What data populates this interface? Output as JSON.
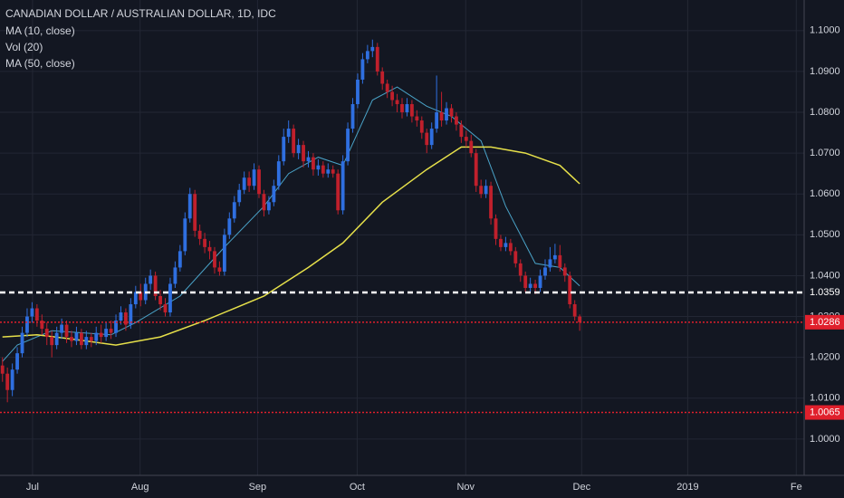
{
  "chart_data": {
    "type": "candlestick",
    "title": "CANADIAN DOLLAR / AUSTRALIAN DOLLAR, 1D, IDC",
    "indicators": [
      "MA (10, close)",
      "Vol (20)",
      "MA (50, close)"
    ],
    "up_color": "#2f6fe0",
    "down_color": "#c0202c",
    "grid": true,
    "xlim": [
      -0.5,
      162.5
    ],
    "ylim": [
      0.9911,
      1.1075
    ],
    "xticks": [
      {
        "value": 6.1,
        "label": "Jul"
      },
      {
        "value": 27.9,
        "label": "Aug"
      },
      {
        "value": 51.7,
        "label": "Sep"
      },
      {
        "value": 71.9,
        "label": "Oct"
      },
      {
        "value": 93.9,
        "label": "Nov"
      },
      {
        "value": 117.4,
        "label": "Dec"
      },
      {
        "value": 138.9,
        "label": "2019"
      },
      {
        "value": 160.9,
        "label": "Fe"
      }
    ],
    "yticks": [
      {
        "value": 1.0,
        "label": "1.0000"
      },
      {
        "value": 1.01,
        "label": "1.0100"
      },
      {
        "value": 1.02,
        "label": "1.0200"
      },
      {
        "value": 1.03,
        "label": "1.0300"
      },
      {
        "value": 1.04,
        "label": "1.0400"
      },
      {
        "value": 1.05,
        "label": "1.0500"
      },
      {
        "value": 1.06,
        "label": "1.0600"
      },
      {
        "value": 1.07,
        "label": "1.0700"
      },
      {
        "value": 1.08,
        "label": "1.0800"
      },
      {
        "value": 1.09,
        "label": "1.0900"
      },
      {
        "value": 1.1,
        "label": "1.1000"
      }
    ],
    "open": [
      1.018,
      1.016,
      1.012,
      1.017,
      1.021,
      1.026,
      1.03,
      1.032,
      1.029,
      1.027,
      1.025,
      1.023,
      1.026,
      1.028,
      1.025,
      1.024,
      1.026,
      1.023,
      1.025,
      1.024,
      1.026,
      1.025,
      1.027,
      1.026,
      1.029,
      1.031,
      1.028,
      1.033,
      1.036,
      1.034,
      1.038,
      1.04,
      1.035,
      1.033,
      1.031,
      1.038,
      1.042,
      1.046,
      1.054,
      1.06,
      1.051,
      1.049,
      1.047,
      1.046,
      1.042,
      1.041,
      1.05,
      1.054,
      1.058,
      1.061,
      1.064,
      1.062,
      1.066,
      1.06,
      1.056,
      1.058,
      1.062,
      1.068,
      1.074,
      1.076,
      1.07,
      1.072,
      1.068,
      1.069,
      1.066,
      1.067,
      1.065,
      1.066,
      1.065,
      1.056,
      1.068,
      1.076,
      1.082,
      1.088,
      1.093,
      1.095,
      1.096,
      1.09,
      1.087,
      1.085,
      1.083,
      1.082,
      1.08,
      1.082,
      1.079,
      1.078,
      1.075,
      1.072,
      1.076,
      1.08,
      1.078,
      1.081,
      1.079,
      1.077,
      1.074,
      1.073,
      1.07,
      1.062,
      1.06,
      1.062,
      1.054,
      1.049,
      1.047,
      1.048,
      1.046,
      1.043,
      1.04,
      1.037,
      1.038,
      1.037,
      1.04,
      1.042,
      1.044,
      1.045,
      1.042,
      1.04,
      1.033,
      1.03
    ],
    "high": [
      1.02,
      1.0175,
      1.0185,
      1.0225,
      1.0275,
      1.032,
      1.0335,
      1.033,
      1.0305,
      1.0285,
      1.0265,
      1.0275,
      1.0295,
      1.029,
      1.0265,
      1.0275,
      1.027,
      1.0265,
      1.026,
      1.0275,
      1.028,
      1.0285,
      1.029,
      1.0305,
      1.0325,
      1.032,
      1.0345,
      1.0375,
      1.038,
      1.0395,
      1.0415,
      1.041,
      1.0365,
      1.0345,
      1.0395,
      1.0435,
      1.0475,
      1.0555,
      1.0615,
      1.061,
      1.0525,
      1.0505,
      1.0485,
      1.047,
      1.0435,
      1.0515,
      1.0555,
      1.0595,
      1.0625,
      1.0655,
      1.0655,
      1.0675,
      1.067,
      1.061,
      1.0595,
      1.0635,
      1.0695,
      1.076,
      1.078,
      1.077,
      1.0735,
      1.073,
      1.0705,
      1.07,
      1.0685,
      1.068,
      1.0675,
      1.067,
      1.066,
      1.0695,
      1.0775,
      1.0835,
      1.0895,
      1.0945,
      1.0965,
      1.0978,
      1.097,
      1.091,
      1.088,
      1.0865,
      1.0845,
      1.0835,
      1.0835,
      1.083,
      1.0805,
      1.079,
      1.076,
      1.0775,
      1.089,
      1.085,
      1.0825,
      1.082,
      1.08,
      1.078,
      1.0755,
      1.0745,
      1.071,
      1.0635,
      1.0635,
      1.063,
      1.055,
      1.05,
      1.0495,
      1.049,
      1.047,
      1.044,
      1.041,
      1.0395,
      1.039,
      1.0415,
      1.044,
      1.047,
      1.0478,
      1.0475,
      1.043,
      1.041,
      1.034,
      1.0305
    ],
    "low": [
      1.014,
      1.009,
      1.0105,
      1.016,
      1.02,
      1.025,
      1.0285,
      1.0275,
      1.0255,
      1.023,
      1.02,
      1.022,
      1.0245,
      1.0235,
      1.0225,
      1.023,
      1.022,
      1.022,
      1.0225,
      1.023,
      1.0235,
      1.024,
      1.0245,
      1.025,
      1.028,
      1.0265,
      1.027,
      1.032,
      1.0325,
      1.033,
      1.0365,
      1.034,
      1.0315,
      1.03,
      1.03,
      1.037,
      1.041,
      1.045,
      1.053,
      1.0495,
      1.0475,
      1.0455,
      1.044,
      1.0405,
      1.04,
      1.04,
      1.049,
      1.053,
      1.057,
      1.06,
      1.0605,
      1.061,
      1.059,
      1.0545,
      1.055,
      1.057,
      1.061,
      1.067,
      1.0725,
      1.069,
      1.0685,
      1.0665,
      1.0665,
      1.0645,
      1.0645,
      1.064,
      1.064,
      1.064,
      1.055,
      1.055,
      1.067,
      1.075,
      1.081,
      1.087,
      1.092,
      1.0935,
      1.089,
      1.0855,
      1.0835,
      1.0815,
      1.08,
      1.0785,
      1.079,
      1.0775,
      1.0765,
      1.0735,
      1.07,
      1.071,
      1.075,
      1.0765,
      1.077,
      1.0775,
      1.0755,
      1.0725,
      1.0715,
      1.069,
      1.0605,
      1.059,
      1.059,
      1.0525,
      1.0475,
      1.046,
      1.046,
      1.045,
      1.042,
      1.0385,
      1.036,
      1.036,
      1.0355,
      1.036,
      1.039,
      1.041,
      1.043,
      1.041,
      1.0385,
      1.032,
      1.029,
      1.0265
    ],
    "close": [
      1.016,
      1.012,
      1.017,
      1.021,
      1.026,
      1.03,
      1.032,
      1.029,
      1.027,
      1.025,
      1.023,
      1.026,
      1.028,
      1.025,
      1.024,
      1.026,
      1.023,
      1.025,
      1.024,
      1.026,
      1.025,
      1.027,
      1.026,
      1.029,
      1.031,
      1.028,
      1.033,
      1.036,
      1.034,
      1.038,
      1.04,
      1.035,
      1.033,
      1.031,
      1.038,
      1.042,
      1.046,
      1.054,
      1.06,
      1.051,
      1.049,
      1.047,
      1.046,
      1.042,
      1.041,
      1.05,
      1.054,
      1.058,
      1.061,
      1.064,
      1.062,
      1.066,
      1.06,
      1.056,
      1.058,
      1.062,
      1.068,
      1.074,
      1.076,
      1.07,
      1.072,
      1.068,
      1.069,
      1.066,
      1.067,
      1.065,
      1.066,
      1.065,
      1.056,
      1.068,
      1.076,
      1.082,
      1.088,
      1.093,
      1.095,
      1.096,
      1.09,
      1.087,
      1.085,
      1.083,
      1.082,
      1.08,
      1.082,
      1.079,
      1.078,
      1.075,
      1.072,
      1.076,
      1.08,
      1.078,
      1.081,
      1.079,
      1.077,
      1.074,
      1.073,
      1.07,
      1.062,
      1.06,
      1.062,
      1.054,
      1.049,
      1.047,
      1.048,
      1.046,
      1.043,
      1.04,
      1.037,
      1.038,
      1.037,
      1.04,
      1.042,
      1.044,
      1.045,
      1.042,
      1.04,
      1.033,
      1.03,
      1.0286
    ],
    "lines": [
      {
        "color": "#4aa3c8",
        "x": [
          0,
          3,
          10,
          22,
          27,
          36,
          45,
          53,
          58,
          64,
          69,
          75,
          80,
          86,
          91,
          97,
          102,
          108,
          113,
          117
        ],
        "values": [
          1.019,
          1.023,
          1.0265,
          1.0255,
          1.0285,
          1.035,
          1.047,
          1.057,
          1.065,
          1.069,
          1.067,
          1.083,
          1.0862,
          1.0815,
          1.079,
          1.073,
          1.057,
          1.043,
          1.042,
          1.0375
        ]
      },
      {
        "color": "#e6e04a",
        "x": [
          0,
          7,
          14,
          23,
          32,
          41,
          53,
          62,
          69,
          77,
          86,
          93,
          99,
          106,
          113,
          117
        ],
        "values": [
          1.025,
          1.0255,
          1.0245,
          1.023,
          1.025,
          1.029,
          1.035,
          1.042,
          1.048,
          1.058,
          1.066,
          1.0715,
          1.0715,
          1.07,
          1.067,
          1.0625
        ]
      }
    ],
    "price_lines": [
      {
        "value": 1.0359,
        "label": "1.0359",
        "color": "#ffffff",
        "style": "dashed"
      },
      {
        "value": 1.0286,
        "label": "1.0286",
        "color": "#e0202c",
        "style": "dotted"
      },
      {
        "value": 1.0065,
        "label": "1.0065",
        "color": "#e0202c",
        "style": "dotted"
      }
    ]
  }
}
